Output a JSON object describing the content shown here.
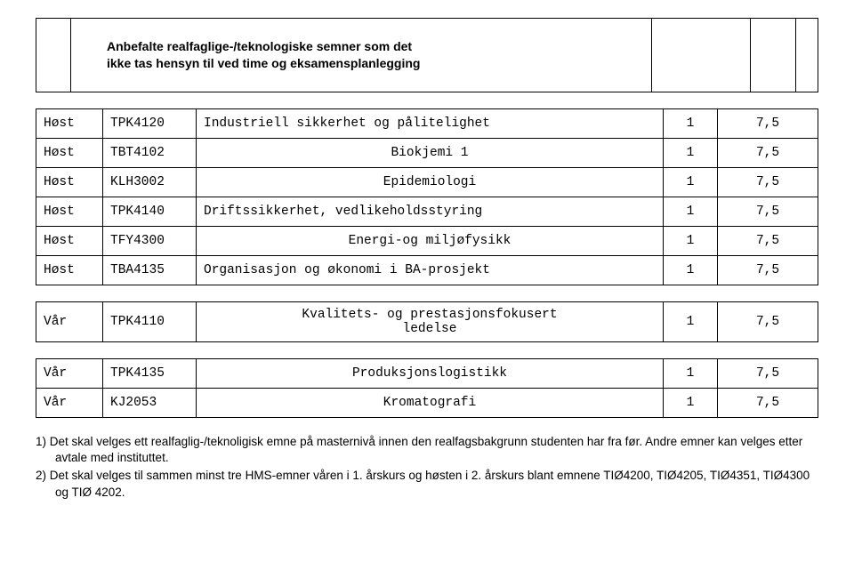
{
  "header": {
    "title_line1": "Anbefalte realfaglige-/teknologiske semner som det",
    "title_line2": "ikke tas hensyn til ved time og eksamensplanlegging"
  },
  "block1": {
    "rows": [
      {
        "sem": "Høst",
        "code": "TPK4120",
        "title": "Industriell sikkerhet og pålitelighet",
        "n": "1",
        "sp": "7,5",
        "center": false
      },
      {
        "sem": "Høst",
        "code": "TBT4102",
        "title": "Biokjemi 1",
        "n": "1",
        "sp": "7,5",
        "center": true
      },
      {
        "sem": "Høst",
        "code": "KLH3002",
        "title": "Epidemiologi",
        "n": "1",
        "sp": "7,5",
        "center": true
      },
      {
        "sem": "Høst",
        "code": "TPK4140",
        "title": "Driftssikkerhet, vedlikeholdsstyring",
        "n": "1",
        "sp": "7,5",
        "center": false
      },
      {
        "sem": "Høst",
        "code": "TFY4300",
        "title": "Energi-og miljøfysikk",
        "n": "1",
        "sp": "7,5",
        "center": true
      },
      {
        "sem": "Høst",
        "code": "TBA4135",
        "title": "Organisasjon og økonomi i BA-prosjekt",
        "n": "1",
        "sp": "7,5",
        "center": false
      }
    ]
  },
  "block2": {
    "rows": [
      {
        "sem": "Vår",
        "code": "TPK4110",
        "title": "Kvalitets- og prestasjonsfokusert\nledelse",
        "n": "1",
        "sp": "7,5",
        "center": true
      }
    ]
  },
  "block3": {
    "rows": [
      {
        "sem": "Vår",
        "code": "TPK4135",
        "title": "Produksjonslogistikk",
        "n": "1",
        "sp": "7,5",
        "center": true
      },
      {
        "sem": "Vår",
        "code": "KJ2053",
        "title": "Kromatografi",
        "n": "1",
        "sp": "7,5",
        "center": true
      }
    ]
  },
  "notes": {
    "n1": "1)  Det skal velges ett realfaglig-/teknoligisk emne på masternivå innen den realfagsbakgrunn studenten har fra før. Andre emner kan velges etter avtale med instituttet.",
    "n2": "2)  Det skal velges til sammen minst tre HMS-emner våren i 1. årskurs og høsten i 2. årskurs blant emnene TIØ4200, TIØ4205, TIØ4351, TIØ4300 og TIØ 4202."
  }
}
